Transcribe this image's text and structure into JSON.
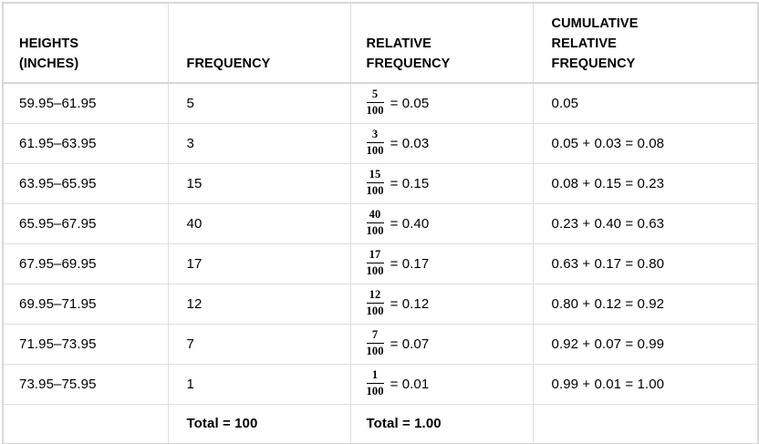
{
  "table": {
    "headers": [
      {
        "lines": [
          "HEIGHTS",
          "(INCHES)"
        ]
      },
      {
        "lines": [
          "FREQUENCY"
        ]
      },
      {
        "lines": [
          "RELATIVE",
          "FREQUENCY"
        ]
      },
      {
        "lines": [
          "CUMULATIVE",
          "RELATIVE",
          "FREQUENCY"
        ]
      }
    ],
    "rows": [
      {
        "heights": "59.95–61.95",
        "frequency": "5",
        "rel_frac": {
          "numerator": "5",
          "denominator": "100"
        },
        "rel_result": "= 0.05",
        "cumulative": "0.05"
      },
      {
        "heights": "61.95–63.95",
        "frequency": "3",
        "rel_frac": {
          "numerator": "3",
          "denominator": "100"
        },
        "rel_result": "= 0.03",
        "cumulative": "0.05 + 0.03 = 0.08"
      },
      {
        "heights": "63.95–65.95",
        "frequency": "15",
        "rel_frac": {
          "numerator": "15",
          "denominator": "100"
        },
        "rel_result": "= 0.15",
        "cumulative": "0.08 + 0.15 = 0.23"
      },
      {
        "heights": "65.95–67.95",
        "frequency": "40",
        "rel_frac": {
          "numerator": "40",
          "denominator": "100"
        },
        "rel_result": "= 0.40",
        "cumulative": "0.23 + 0.40 = 0.63"
      },
      {
        "heights": "67.95–69.95",
        "frequency": "17",
        "rel_frac": {
          "numerator": "17",
          "denominator": "100"
        },
        "rel_result": "= 0.17",
        "cumulative": "0.63 + 0.17 = 0.80"
      },
      {
        "heights": "69.95–71.95",
        "frequency": "12",
        "rel_frac": {
          "numerator": "12",
          "denominator": "100"
        },
        "rel_result": "= 0.12",
        "cumulative": "0.80 + 0.12 = 0.92"
      },
      {
        "heights": "71.95–73.95",
        "frequency": "7",
        "rel_frac": {
          "numerator": "7",
          "denominator": "100"
        },
        "rel_result": "= 0.07",
        "cumulative": "0.92 + 0.07 = 0.99"
      },
      {
        "heights": "73.95–75.95",
        "frequency": "1",
        "rel_frac": {
          "numerator": "1",
          "denominator": "100"
        },
        "rel_result": "= 0.01",
        "cumulative": "0.99 + 0.01 = 1.00"
      }
    ],
    "totals": {
      "frequency": "Total = 100",
      "relative_frequency": "Total = 1.00"
    }
  }
}
